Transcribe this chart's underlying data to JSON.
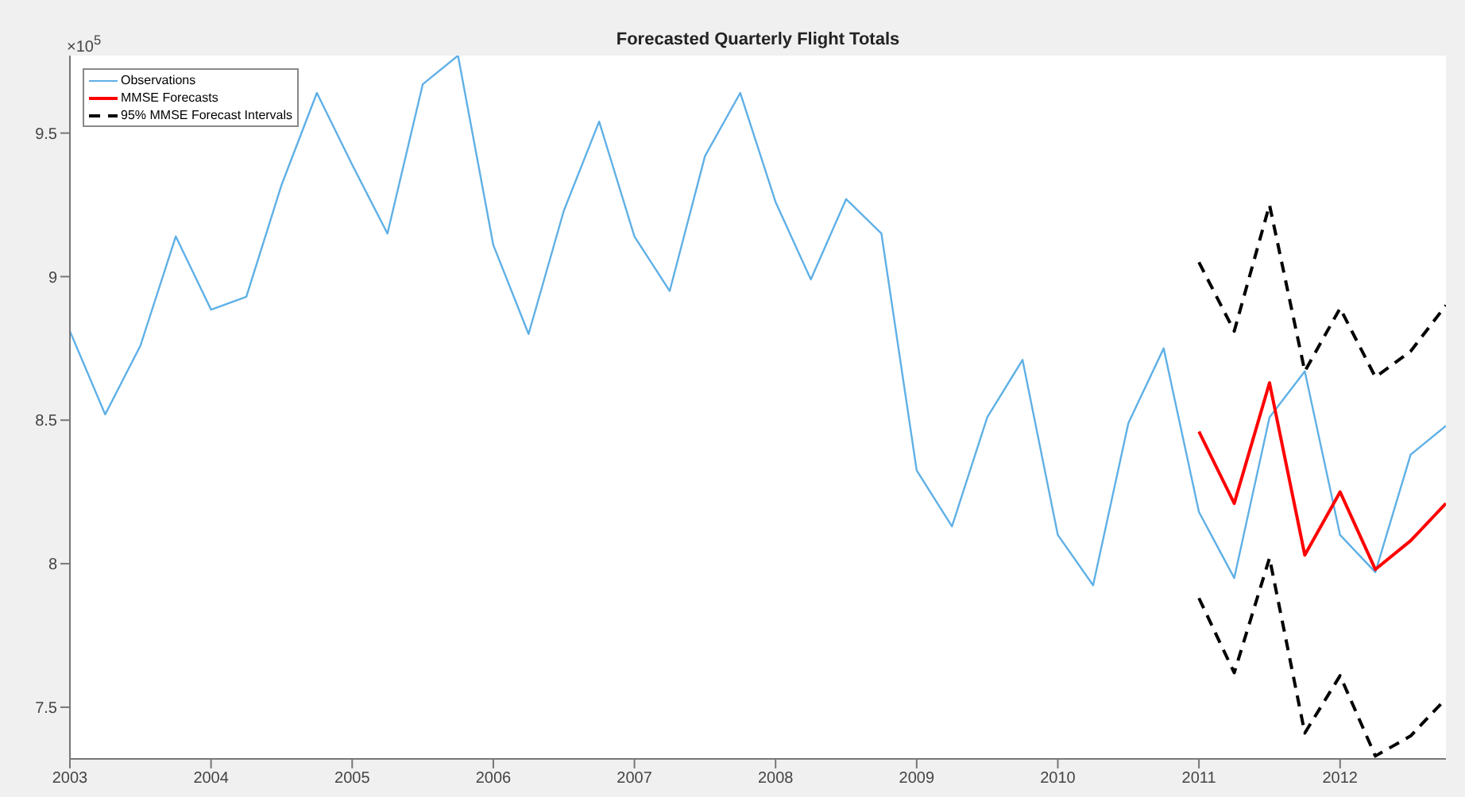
{
  "chart_data": {
    "type": "line",
    "title": "Forecasted Quarterly Flight Totals",
    "annotations": [
      "×10$^{5}$"
    ],
    "x": [
      2003,
      2003.25,
      2003.5,
      2003.75,
      2004,
      2004.25,
      2004.5,
      2004.75,
      2005,
      2005.25,
      2005.5,
      2005.75,
      2006,
      2006.25,
      2006.5,
      2006.75,
      2007,
      2007.25,
      2007.5,
      2007.75,
      2008,
      2008.25,
      2008.5,
      2008.75,
      2009,
      2009.25,
      2009.5,
      2009.75,
      2010,
      2010.25,
      2010.5,
      2010.75,
      2011,
      2011.25,
      2011.5,
      2011.75,
      2012,
      2012.25,
      2012.5,
      2012.75
    ],
    "series": [
      {
        "name": "Observations",
        "color": "#5fb0e6",
        "values": [
          8.81,
          8.52,
          8.76,
          9.14,
          8.885,
          8.93,
          9.32,
          9.64,
          9.39,
          9.15,
          9.67,
          9.77,
          9.11,
          8.8,
          9.23,
          9.54,
          9.14,
          8.95,
          9.42,
          9.64,
          9.26,
          8.99,
          9.27,
          9.15,
          8.325,
          8.13,
          8.51,
          8.71,
          8.1,
          7.925,
          8.49,
          8.75,
          8.18,
          7.95,
          8.51,
          8.67,
          8.1,
          7.97,
          8.38,
          8.48
        ]
      },
      {
        "name": "MMSE Forecasts",
        "color": "#ff0000",
        "x": [
          2011,
          2011.25,
          2011.5,
          2011.75,
          2012,
          2012.25,
          2012.5,
          2012.75
        ],
        "values": [
          8.46,
          8.21,
          8.63,
          8.03,
          8.25,
          7.98,
          8.08,
          8.21
        ]
      },
      {
        "name": "95% MMSE Forecast Intervals",
        "color": "#000000",
        "line_style": "dashed",
        "x": [
          2011,
          2011.25,
          2011.5,
          2011.75,
          2012,
          2012.25,
          2012.5,
          2012.75
        ],
        "values": [
          9.05,
          8.81,
          9.25,
          8.67,
          8.89,
          8.65,
          8.74,
          8.9
        ]
      },
      {
        "color": "#000000",
        "line_style": "dashed",
        "x": [
          2011,
          2011.25,
          2011.5,
          2011.75,
          2012,
          2012.25,
          2012.5,
          2012.75
        ],
        "values": [
          7.88,
          7.62,
          8.02,
          7.41,
          7.61,
          7.33,
          7.4,
          7.53
        ]
      }
    ],
    "xlim": [
      2003,
      2012.75
    ],
    "xticks": [
      2003,
      2004,
      2005,
      2006,
      2007,
      2008,
      2009,
      2010,
      2011,
      2012
    ],
    "ylim": [
      7.32,
      9.77
    ],
    "yticks": [
      7.5,
      8,
      8.5,
      9,
      9.5
    ],
    "grid": false,
    "legend": "top left",
    "marker": "none"
  }
}
